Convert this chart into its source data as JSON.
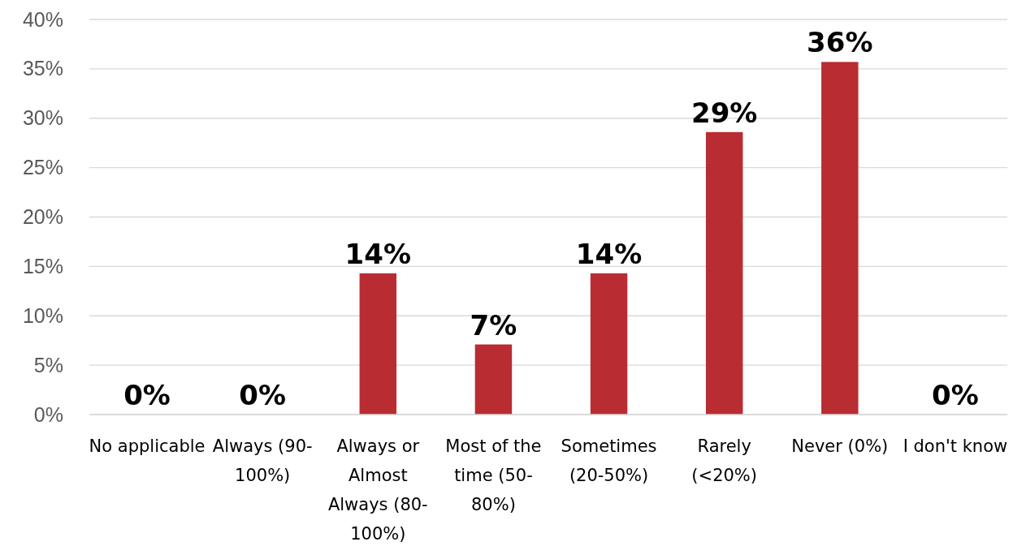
{
  "chart_data": {
    "type": "bar",
    "categories": [
      "No applicable",
      "Always (90-100%)",
      "Always or Almost Always (80-100%)",
      "Most of the time (50-80%)",
      "Sometimes (20-50%)",
      "Rarely (<20%)",
      "Never (0%)",
      "I don't know"
    ],
    "values": [
      0,
      0,
      14.3,
      7.1,
      14.3,
      28.6,
      35.7,
      0
    ],
    "value_labels": [
      "0%",
      "0%",
      "14%",
      "7%",
      "14%",
      "29%",
      "36%",
      "0%"
    ],
    "color": "#b92d32",
    "ylim": [
      0,
      40
    ],
    "yticks": [
      {
        "value": 0,
        "label": "0%"
      },
      {
        "value": 5,
        "label": "5%"
      },
      {
        "value": 10,
        "label": "10%"
      },
      {
        "value": 15,
        "label": "15%"
      },
      {
        "value": 20,
        "label": "20%"
      },
      {
        "value": 25,
        "label": "25%"
      },
      {
        "value": 30,
        "label": "30%"
      },
      {
        "value": 35,
        "label": "35%"
      },
      {
        "value": 40,
        "label": "40%"
      }
    ],
    "grid": "y"
  }
}
